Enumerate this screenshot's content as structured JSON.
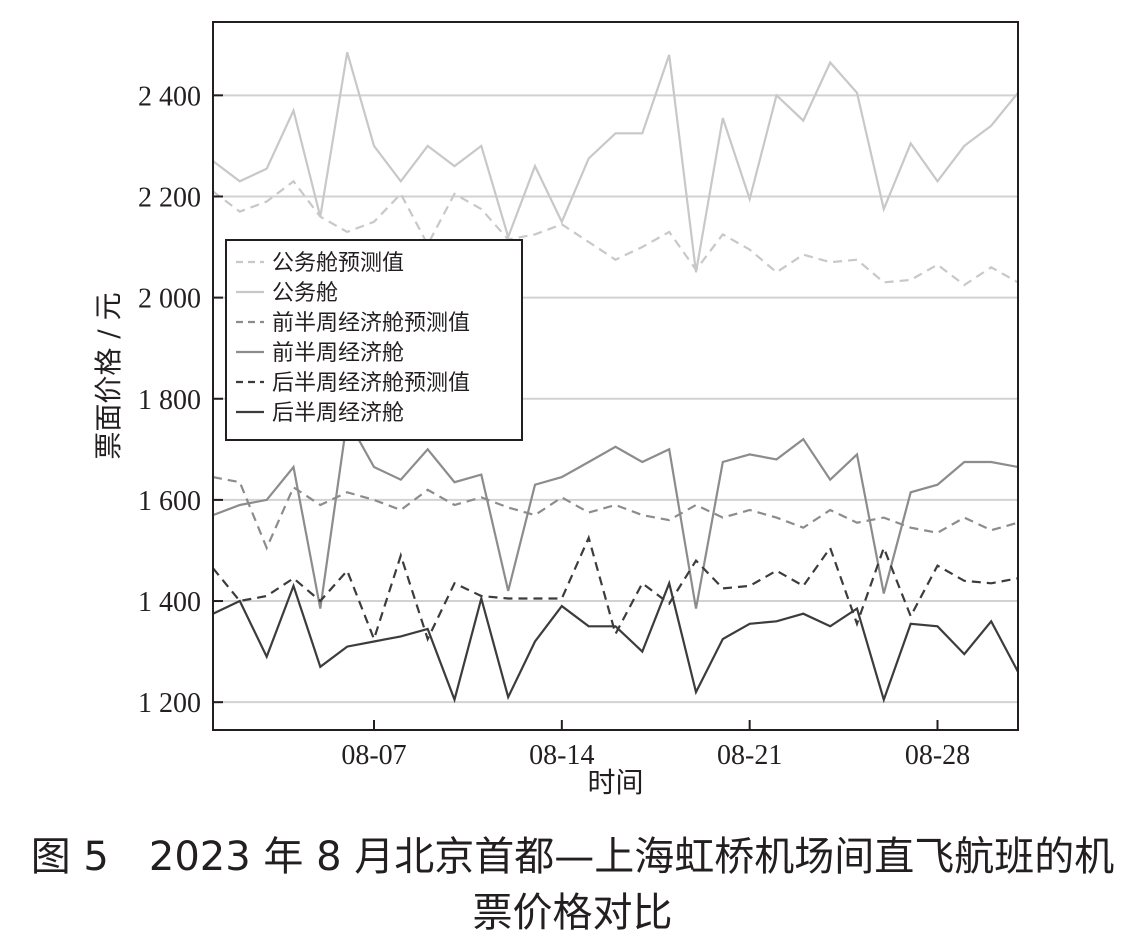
{
  "caption": {
    "line1": "图 5　2023 年 8 月北京首都—上海虹桥机场间直飞航班的机",
    "line2": "票价格对比"
  },
  "chart_data": {
    "type": "line",
    "xlabel": "时间",
    "ylabel": "票面价格 / 元",
    "x": [
      "08-01",
      "08-02",
      "08-03",
      "08-04",
      "08-05",
      "08-06",
      "08-07",
      "08-08",
      "08-09",
      "08-10",
      "08-11",
      "08-12",
      "08-13",
      "08-14",
      "08-15",
      "08-16",
      "08-17",
      "08-18",
      "08-19",
      "08-20",
      "08-21",
      "08-22",
      "08-23",
      "08-24",
      "08-25",
      "08-26",
      "08-27",
      "08-28",
      "08-29",
      "08-30",
      "08-31"
    ],
    "x_ticks": [
      "08-07",
      "08-14",
      "08-21",
      "08-28"
    ],
    "y_ticks": [
      1200,
      1400,
      1600,
      1800,
      2000,
      2200,
      2400
    ],
    "y_tick_labels": [
      "1 200",
      "1 400",
      "1 600",
      "1 800",
      "2 000",
      "2 200",
      "2 400"
    ],
    "ylim": [
      1145,
      2545
    ],
    "grid": "horizontal",
    "legend_position": "middle-left",
    "series": [
      {
        "name": "公务舱预测值",
        "color": "#c8c8c8",
        "dash": true,
        "values": [
          2210,
          2170,
          2190,
          2230,
          2160,
          2130,
          2150,
          2205,
          2105,
          2205,
          2175,
          2115,
          2125,
          2145,
          2110,
          2075,
          2100,
          2130,
          2055,
          2125,
          2095,
          2050,
          2085,
          2070,
          2075,
          2030,
          2035,
          2065,
          2025,
          2060,
          2030
        ]
      },
      {
        "name": "公务舱",
        "color": "#c8c8c8",
        "dash": false,
        "values": [
          2270,
          2230,
          2255,
          2370,
          2160,
          2485,
          2300,
          2230,
          2300,
          2260,
          2300,
          2120,
          2260,
          2150,
          2275,
          2325,
          2325,
          2480,
          2050,
          2355,
          2195,
          2400,
          2350,
          2465,
          2405,
          2175,
          2305,
          2230,
          2300,
          2340,
          2405
        ]
      },
      {
        "name": "前半周经济舱预测值",
        "color": "#8c8c8c",
        "dash": true,
        "values": [
          1645,
          1635,
          1505,
          1625,
          1590,
          1615,
          1600,
          1580,
          1620,
          1590,
          1605,
          1585,
          1570,
          1605,
          1575,
          1590,
          1570,
          1560,
          1590,
          1565,
          1580,
          1565,
          1545,
          1580,
          1555,
          1565,
          1545,
          1535,
          1565,
          1540,
          1555
        ]
      },
      {
        "name": "前半周经济舱",
        "color": "#8c8c8c",
        "dash": false,
        "values": [
          1570,
          1590,
          1600,
          1665,
          1385,
          1760,
          1665,
          1640,
          1700,
          1635,
          1650,
          1420,
          1630,
          1645,
          1675,
          1705,
          1675,
          1700,
          1385,
          1675,
          1690,
          1680,
          1720,
          1640,
          1690,
          1415,
          1615,
          1630,
          1675,
          1675,
          1665
        ]
      },
      {
        "name": "后半周经济舱预测值",
        "color": "#3c3c3c",
        "dash": true,
        "values": [
          1465,
          1400,
          1410,
          1445,
          1400,
          1460,
          1325,
          1490,
          1325,
          1435,
          1410,
          1405,
          1405,
          1405,
          1525,
          1335,
          1435,
          1395,
          1480,
          1425,
          1430,
          1460,
          1430,
          1505,
          1355,
          1505,
          1370,
          1470,
          1440,
          1435,
          1445
        ]
      },
      {
        "name": "后半周经济舱",
        "color": "#3c3c3c",
        "dash": false,
        "values": [
          1375,
          1400,
          1290,
          1430,
          1270,
          1310,
          1320,
          1330,
          1345,
          1205,
          1405,
          1210,
          1320,
          1390,
          1350,
          1350,
          1300,
          1435,
          1220,
          1325,
          1355,
          1360,
          1375,
          1350,
          1385,
          1205,
          1355,
          1350,
          1295,
          1360,
          1260
        ]
      }
    ]
  }
}
